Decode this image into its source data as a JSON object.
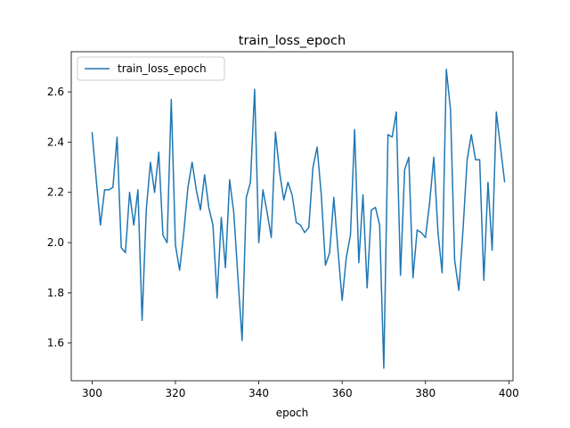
{
  "chart_data": {
    "type": "line",
    "title": "train_loss_epoch",
    "xlabel": "epoch",
    "ylabel": "",
    "xlim": [
      295,
      401
    ],
    "ylim": [
      1.45,
      2.76
    ],
    "xticks": [
      300,
      320,
      340,
      360,
      380,
      400
    ],
    "yticks": [
      1.6,
      1.8,
      2.0,
      2.2,
      2.4,
      2.6
    ],
    "grid": false,
    "legend_position": "top-left",
    "series": [
      {
        "name": "train_loss_epoch",
        "color": "#1f77b4",
        "x": [
          300,
          301,
          302,
          303,
          304,
          305,
          306,
          307,
          308,
          309,
          310,
          311,
          312,
          313,
          314,
          315,
          316,
          317,
          318,
          319,
          320,
          321,
          322,
          323,
          324,
          325,
          326,
          327,
          328,
          329,
          330,
          331,
          332,
          333,
          334,
          335,
          336,
          337,
          338,
          339,
          340,
          341,
          342,
          343,
          344,
          345,
          346,
          347,
          348,
          349,
          350,
          351,
          352,
          353,
          354,
          355,
          356,
          357,
          358,
          359,
          360,
          361,
          362,
          363,
          364,
          365,
          366,
          367,
          368,
          369,
          370,
          371,
          372,
          373,
          374,
          375,
          376,
          377,
          378,
          379,
          380,
          381,
          382,
          383,
          384,
          385,
          386,
          387,
          388,
          389,
          390,
          391,
          392,
          393,
          394,
          395,
          396,
          397,
          398,
          399
        ],
        "values": [
          2.44,
          2.25,
          2.07,
          2.21,
          2.21,
          2.22,
          2.42,
          1.98,
          1.96,
          2.2,
          2.07,
          2.21,
          1.69,
          2.13,
          2.32,
          2.2,
          2.36,
          2.03,
          2.0,
          2.57,
          1.99,
          1.89,
          2.04,
          2.22,
          2.32,
          2.21,
          2.13,
          2.27,
          2.14,
          2.07,
          1.78,
          2.1,
          1.9,
          2.25,
          2.12,
          1.86,
          1.61,
          2.18,
          2.24,
          2.61,
          2.0,
          2.21,
          2.12,
          2.02,
          2.44,
          2.28,
          2.17,
          2.24,
          2.19,
          2.08,
          2.07,
          2.04,
          2.06,
          2.3,
          2.38,
          2.19,
          1.91,
          1.96,
          2.18,
          1.97,
          1.77,
          1.94,
          2.03,
          2.45,
          1.92,
          2.19,
          1.82,
          2.13,
          2.14,
          2.07,
          1.5,
          2.43,
          2.42,
          2.52,
          1.87,
          2.29,
          2.34,
          1.86,
          2.05,
          2.04,
          2.02,
          2.16,
          2.34,
          2.04,
          1.88,
          2.69,
          2.53,
          1.93,
          1.81,
          2.05,
          2.33,
          2.43,
          2.33,
          2.33,
          1.85,
          2.24,
          1.97,
          2.52,
          2.38,
          2.24
        ]
      }
    ]
  }
}
